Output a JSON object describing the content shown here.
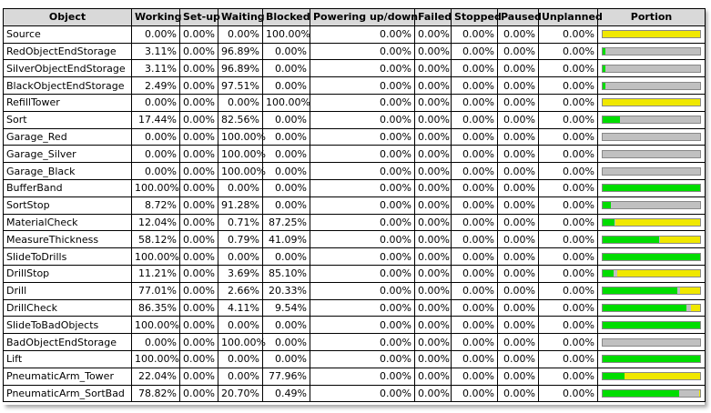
{
  "colors": {
    "working": "#00dd00",
    "setup": "#3a6fd8",
    "waiting": "#c0c0c0",
    "blocked": "#f0e800",
    "header_bg": "#d9d9d9"
  },
  "columns": [
    "Object",
    "Working",
    "Set-up",
    "Waiting",
    "Blocked",
    "Powering up/down",
    "Failed",
    "Stopped",
    "Paused",
    "Unplanned",
    "Portion"
  ],
  "rows": [
    {
      "name": "Source",
      "working": "0.00%",
      "setup": "0.00%",
      "waiting": "0.00%",
      "blocked": "100.00%",
      "powering": "0.00%",
      "failed": "0.00%",
      "stopped": "0.00%",
      "paused": "0.00%",
      "unplanned": "0.00%",
      "portion": {
        "working": 0,
        "setup": 0,
        "waiting": 0,
        "blocked": 100
      }
    },
    {
      "name": "RedObjectEndStorage",
      "working": "3.11%",
      "setup": "0.00%",
      "waiting": "96.89%",
      "blocked": "0.00%",
      "powering": "0.00%",
      "failed": "0.00%",
      "stopped": "0.00%",
      "paused": "0.00%",
      "unplanned": "0.00%",
      "portion": {
        "working": 3.11,
        "setup": 0,
        "waiting": 96.89,
        "blocked": 0
      }
    },
    {
      "name": "SilverObjectEndStorage",
      "working": "3.11%",
      "setup": "0.00%",
      "waiting": "96.89%",
      "blocked": "0.00%",
      "powering": "0.00%",
      "failed": "0.00%",
      "stopped": "0.00%",
      "paused": "0.00%",
      "unplanned": "0.00%",
      "portion": {
        "working": 3.11,
        "setup": 0,
        "waiting": 96.89,
        "blocked": 0
      }
    },
    {
      "name": "BlackObjectEndStorage",
      "working": "2.49%",
      "setup": "0.00%",
      "waiting": "97.51%",
      "blocked": "0.00%",
      "powering": "0.00%",
      "failed": "0.00%",
      "stopped": "0.00%",
      "paused": "0.00%",
      "unplanned": "0.00%",
      "portion": {
        "working": 2.49,
        "setup": 0,
        "waiting": 97.51,
        "blocked": 0
      }
    },
    {
      "name": "RefillTower",
      "working": "0.00%",
      "setup": "0.00%",
      "waiting": "0.00%",
      "blocked": "100.00%",
      "powering": "0.00%",
      "failed": "0.00%",
      "stopped": "0.00%",
      "paused": "0.00%",
      "unplanned": "0.00%",
      "portion": {
        "working": 0,
        "setup": 0,
        "waiting": 0,
        "blocked": 100
      }
    },
    {
      "name": "Sort",
      "working": "17.44%",
      "setup": "0.00%",
      "waiting": "82.56%",
      "blocked": "0.00%",
      "powering": "0.00%",
      "failed": "0.00%",
      "stopped": "0.00%",
      "paused": "0.00%",
      "unplanned": "0.00%",
      "portion": {
        "working": 17.44,
        "setup": 0,
        "waiting": 82.56,
        "blocked": 0
      }
    },
    {
      "name": "Garage_Red",
      "working": "0.00%",
      "setup": "0.00%",
      "waiting": "100.00%",
      "blocked": "0.00%",
      "powering": "0.00%",
      "failed": "0.00%",
      "stopped": "0.00%",
      "paused": "0.00%",
      "unplanned": "0.00%",
      "portion": {
        "working": 0,
        "setup": 0,
        "waiting": 100,
        "blocked": 0
      }
    },
    {
      "name": "Garage_Silver",
      "working": "0.00%",
      "setup": "0.00%",
      "waiting": "100.00%",
      "blocked": "0.00%",
      "powering": "0.00%",
      "failed": "0.00%",
      "stopped": "0.00%",
      "paused": "0.00%",
      "unplanned": "0.00%",
      "portion": {
        "working": 0,
        "setup": 0,
        "waiting": 100,
        "blocked": 0
      }
    },
    {
      "name": "Garage_Black",
      "working": "0.00%",
      "setup": "0.00%",
      "waiting": "100.00%",
      "blocked": "0.00%",
      "powering": "0.00%",
      "failed": "0.00%",
      "stopped": "0.00%",
      "paused": "0.00%",
      "unplanned": "0.00%",
      "portion": {
        "working": 0,
        "setup": 0,
        "waiting": 100,
        "blocked": 0
      }
    },
    {
      "name": "BufferBand",
      "working": "100.00%",
      "setup": "0.00%",
      "waiting": "0.00%",
      "blocked": "0.00%",
      "powering": "0.00%",
      "failed": "0.00%",
      "stopped": "0.00%",
      "paused": "0.00%",
      "unplanned": "0.00%",
      "portion": {
        "working": 100,
        "setup": 0,
        "waiting": 0,
        "blocked": 0
      }
    },
    {
      "name": "SortStop",
      "working": "8.72%",
      "setup": "0.00%",
      "waiting": "91.28%",
      "blocked": "0.00%",
      "powering": "0.00%",
      "failed": "0.00%",
      "stopped": "0.00%",
      "paused": "0.00%",
      "unplanned": "0.00%",
      "portion": {
        "working": 8.72,
        "setup": 0,
        "waiting": 91.28,
        "blocked": 0
      }
    },
    {
      "name": "MaterialCheck",
      "working": "12.04%",
      "setup": "0.00%",
      "waiting": "0.71%",
      "blocked": "87.25%",
      "powering": "0.00%",
      "failed": "0.00%",
      "stopped": "0.00%",
      "paused": "0.00%",
      "unplanned": "0.00%",
      "portion": {
        "working": 12.04,
        "setup": 0,
        "waiting": 0.71,
        "blocked": 87.25
      }
    },
    {
      "name": "MeasureThickness",
      "working": "58.12%",
      "setup": "0.00%",
      "waiting": "0.79%",
      "blocked": "41.09%",
      "powering": "0.00%",
      "failed": "0.00%",
      "stopped": "0.00%",
      "paused": "0.00%",
      "unplanned": "0.00%",
      "portion": {
        "working": 58.12,
        "setup": 0,
        "waiting": 0.79,
        "blocked": 41.09
      }
    },
    {
      "name": "SlideToDrills",
      "working": "100.00%",
      "setup": "0.00%",
      "waiting": "0.00%",
      "blocked": "0.00%",
      "powering": "0.00%",
      "failed": "0.00%",
      "stopped": "0.00%",
      "paused": "0.00%",
      "unplanned": "0.00%",
      "portion": {
        "working": 100,
        "setup": 0,
        "waiting": 0,
        "blocked": 0
      }
    },
    {
      "name": "DrillStop",
      "working": "11.21%",
      "setup": "0.00%",
      "waiting": "3.69%",
      "blocked": "85.10%",
      "powering": "0.00%",
      "failed": "0.00%",
      "stopped": "0.00%",
      "paused": "0.00%",
      "unplanned": "0.00%",
      "portion": {
        "working": 11.21,
        "setup": 0,
        "waiting": 3.69,
        "blocked": 85.1
      }
    },
    {
      "name": "Drill",
      "working": "77.01%",
      "setup": "0.00%",
      "waiting": "2.66%",
      "blocked": "20.33%",
      "powering": "0.00%",
      "failed": "0.00%",
      "stopped": "0.00%",
      "paused": "0.00%",
      "unplanned": "0.00%",
      "portion": {
        "working": 77.01,
        "setup": 0,
        "waiting": 2.66,
        "blocked": 20.33
      }
    },
    {
      "name": "DrillCheck",
      "working": "86.35%",
      "setup": "0.00%",
      "waiting": "4.11%",
      "blocked": "9.54%",
      "powering": "0.00%",
      "failed": "0.00%",
      "stopped": "0.00%",
      "paused": "0.00%",
      "unplanned": "0.00%",
      "portion": {
        "working": 86.35,
        "setup": 0,
        "waiting": 4.11,
        "blocked": 9.54
      }
    },
    {
      "name": "SlideToBadObjects",
      "working": "100.00%",
      "setup": "0.00%",
      "waiting": "0.00%",
      "blocked": "0.00%",
      "powering": "0.00%",
      "failed": "0.00%",
      "stopped": "0.00%",
      "paused": "0.00%",
      "unplanned": "0.00%",
      "portion": {
        "working": 100,
        "setup": 0,
        "waiting": 0,
        "blocked": 0
      }
    },
    {
      "name": "BadObjectEndStorage",
      "working": "0.00%",
      "setup": "0.00%",
      "waiting": "100.00%",
      "blocked": "0.00%",
      "powering": "0.00%",
      "failed": "0.00%",
      "stopped": "0.00%",
      "paused": "0.00%",
      "unplanned": "0.00%",
      "portion": {
        "working": 0,
        "setup": 0,
        "waiting": 100,
        "blocked": 0
      }
    },
    {
      "name": "Lift",
      "working": "100.00%",
      "setup": "0.00%",
      "waiting": "0.00%",
      "blocked": "0.00%",
      "powering": "0.00%",
      "failed": "0.00%",
      "stopped": "0.00%",
      "paused": "0.00%",
      "unplanned": "0.00%",
      "portion": {
        "working": 100,
        "setup": 0,
        "waiting": 0,
        "blocked": 0
      }
    },
    {
      "name": "PneumaticArm_Tower",
      "working": "22.04%",
      "setup": "0.00%",
      "waiting": "0.00%",
      "blocked": "77.96%",
      "powering": "0.00%",
      "failed": "0.00%",
      "stopped": "0.00%",
      "paused": "0.00%",
      "unplanned": "0.00%",
      "portion": {
        "working": 22.04,
        "setup": 0,
        "waiting": 0,
        "blocked": 77.96
      }
    },
    {
      "name": "PneumaticArm_SortBad",
      "working": "78.82%",
      "setup": "0.00%",
      "waiting": "20.70%",
      "blocked": "0.49%",
      "powering": "0.00%",
      "failed": "0.00%",
      "stopped": "0.00%",
      "paused": "0.00%",
      "unplanned": "0.00%",
      "portion": {
        "working": 78.82,
        "setup": 0,
        "waiting": 20.7,
        "blocked": 0.49
      }
    }
  ]
}
